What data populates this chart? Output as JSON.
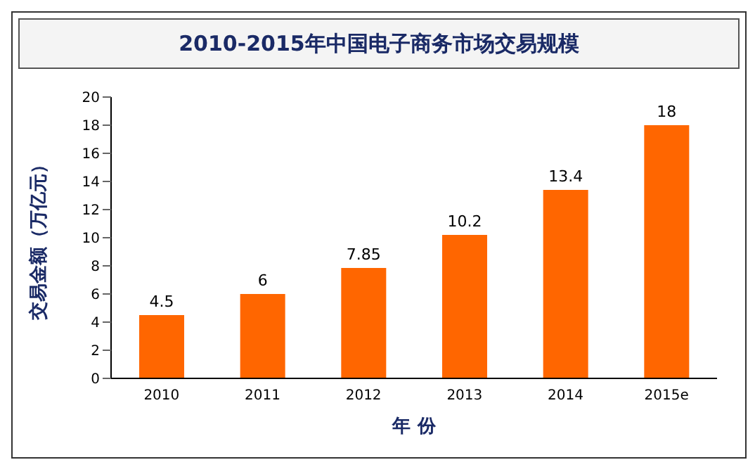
{
  "chart_data": {
    "type": "bar",
    "title": "2010-2015年中国电子商务市场交易规模",
    "xlabel": "年 份",
    "ylabel": "交易金额（万亿元）",
    "categories": [
      "2010",
      "2011",
      "2012",
      "2013",
      "2014",
      "2015e"
    ],
    "values": [
      4.5,
      6,
      7.85,
      10.2,
      13.4,
      18
    ],
    "color": "#ff6600",
    "ylim": [
      0,
      20
    ],
    "yticks": [
      0,
      2,
      4,
      6,
      8,
      10,
      12,
      14,
      16,
      18,
      20
    ],
    "grid": false,
    "data_labels": true
  }
}
